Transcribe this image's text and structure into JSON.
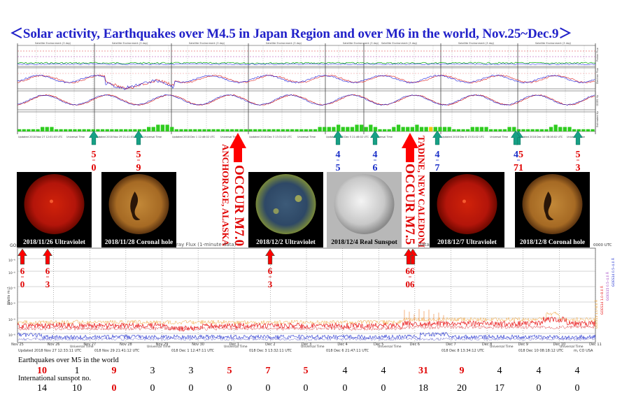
{
  "title": "＜Solar activity, Earthquakes over M4.5 in Japan Region and over M6 in the world, Nov.25~Dec.9＞",
  "colors": {
    "title": "#2121c9",
    "red_number": "#e00000",
    "blue_number": "#1a2fc8",
    "arrow_green": "#16a085",
    "arrow_red": "#ff0000",
    "xray_long": "#e81010",
    "xray_short": "#2030d0",
    "kp_bar": "#2ecc1f"
  },
  "panel_top": {
    "panel_title": "Satellite Environment (3 day)",
    "right_labels": [
      "Proton Flux",
      "Electron Flux",
      "GOES Hp",
      "Estimated Kp"
    ],
    "universal_time_label": "Universal Time",
    "updated_labels": [
      "Updated 2018 Nov 27 12:01:03 UTC",
      "Updated 2018 Nov 29 21:41:03 UTC",
      "Updated 2018 Dec 1 12:46:02 UTC",
      "Updated 2018 Dec 3 13:31:02 UTC",
      "Updated 2018 Dec 5 21:46:02 UTC",
      "Updated 2018 Dec 8 13:31:02 UTC",
      "Updated 2018 Dec 10 08:16:02 UTC"
    ]
  },
  "japan_quakes_blue_up": [
    {
      "top": "5",
      "bottom": "0",
      "color": "red"
    },
    {
      "top": "5",
      "bottom": "9",
      "color": "red"
    },
    {
      "top": "4",
      "bottom": "5",
      "color": "blue"
    },
    {
      "top": "4",
      "bottom": "6",
      "color": "blue"
    },
    {
      "top": "4",
      "bottom": "7",
      "color": "blue"
    },
    {
      "top": "45",
      "bottom": "71",
      "color": "mixed"
    },
    {
      "top": "5",
      "bottom": "3",
      "color": "red"
    }
  ],
  "big_quakes": [
    {
      "text": "OCCUR M7.0",
      "place": "ANCHORAGE, ALASKA"
    },
    {
      "text": "OCCUR M7.5",
      "place": "TADINE, NEW CALEDONIA"
    }
  ],
  "sun_images": [
    {
      "caption": "2018/11/26 Ultraviolet",
      "type": "uv-red"
    },
    {
      "caption": "2018/11/28 Coronal hole",
      "type": "coronal"
    },
    {
      "caption": "2018/12/2 Ultraviolet",
      "type": "uv-blue"
    },
    {
      "caption": "2018/12/4 Real Sunspot",
      "type": "white"
    },
    {
      "caption": "2018/12/7 Ultraviolet",
      "type": "uv-red"
    },
    {
      "caption": "2018/12/8 Coronal hole",
      "type": "coronal"
    }
  ],
  "xray_panel": {
    "title_left": "GOES",
    "title_mid": "X-ray Flux (1-minute data)",
    "title_mid2": "data)",
    "title_right": "0000 UTC",
    "ylabel": "Watts m⁻²",
    "ytick": "10⁻⁶",
    "legend": [
      "GOES15 1.0–8.0 Å",
      "GOES14 1.0–8.0 Å",
      "GOES15 0.5–4.0 Å",
      "GOES14 0.5–4.0 Å"
    ],
    "x_ticks": [
      "Nov 25",
      "Nov 26",
      "Nov 27",
      "Nov 28",
      "Nov 29",
      "Nov 30",
      "Dec 1",
      "Dec 2",
      "Dec 3",
      "Dec 4",
      "Dec 5",
      "Dec 6",
      "Dec 7",
      "Dec 8",
      "Dec 9",
      "Dec 10",
      "Dec 11"
    ],
    "updated_labels": [
      "Updated 2018 Nov 27 12:33:11 UTC",
      "018 Nov 29 21:41:12 UTC",
      "018 Dec 1 12:47:11 UTC",
      "018 Dec 3 13:32:11 UTC",
      "018 Dec 6 21:47:11 UTC",
      "018 Dec 8 13:34:12 UTC",
      "018 Dec 10 08:18:12 UTC"
    ],
    "source": "m, CO USA",
    "universal_time_label": "Universal Time"
  },
  "world_quakes_red_up": [
    {
      "top": "6",
      "bottom": "0"
    },
    {
      "top": "6",
      "bottom": "3"
    },
    {
      "top": "6",
      "bottom": "3"
    },
    {
      "top": "66",
      "bottom": "06"
    }
  ],
  "bottom_table": {
    "earthquake_label": "Earthquakes over M5 in the world",
    "earthquakes": [
      "10",
      "1",
      "9",
      "3",
      "3",
      "5",
      "7",
      "5",
      "4",
      "4",
      "31",
      "9",
      "4",
      "4",
      "4"
    ],
    "earthquake_colors": [
      "red",
      "black",
      "red",
      "black",
      "black",
      "red",
      "red",
      "red",
      "black",
      "black",
      "red",
      "red",
      "black",
      "black",
      "black"
    ],
    "sunspot_label": "International sunspot no.",
    "sunspots": [
      "14",
      "10",
      "0",
      "0",
      "0",
      "0",
      "0",
      "0",
      "0",
      "0",
      "18",
      "20",
      "17",
      "0",
      "0"
    ],
    "sunspot_colors": [
      "black",
      "black",
      "red",
      "black",
      "black",
      "black",
      "black",
      "black",
      "black",
      "black",
      "black",
      "black",
      "black",
      "black",
      "black"
    ]
  },
  "chart_data": {
    "type": "table",
    "title": "＜Solar activity, Earthquakes over M4.5 in Japan Region and over M6 in the world, Nov.25~Dec.9＞",
    "x": [
      "Nov 25",
      "Nov 26",
      "Nov 27",
      "Nov 28",
      "Nov 29",
      "Nov 30",
      "Dec 1",
      "Dec 2",
      "Dec 3",
      "Dec 4",
      "Dec 5",
      "Dec 6",
      "Dec 7",
      "Dec 8",
      "Dec 9"
    ],
    "series": [
      {
        "name": "Earthquakes over M5 in the world",
        "values": [
          10,
          1,
          9,
          3,
          3,
          5,
          7,
          5,
          4,
          4,
          31,
          9,
          4,
          4,
          4
        ]
      },
      {
        "name": "International sunspot no.",
        "values": [
          14,
          10,
          0,
          0,
          0,
          0,
          0,
          0,
          0,
          0,
          18,
          20,
          17,
          0,
          0
        ]
      }
    ],
    "estimated_kp_bar_heights": [
      1,
      1,
      1,
      1,
      1,
      2,
      2,
      2,
      1,
      1,
      1,
      1,
      1,
      1,
      1,
      1,
      1,
      1,
      1,
      1,
      1,
      1,
      1,
      1,
      1,
      1,
      1,
      1,
      2,
      2,
      3,
      3,
      3,
      2,
      1,
      1,
      1,
      1,
      1,
      1,
      1,
      1,
      1,
      1,
      1,
      1,
      1,
      1,
      1,
      1,
      1,
      1,
      1,
      1,
      1,
      1,
      1,
      1,
      1,
      1,
      1,
      1,
      1,
      1,
      1,
      2,
      2,
      2,
      2,
      3,
      2,
      2,
      2,
      3,
      3,
      2,
      3,
      2,
      1,
      1,
      1,
      2,
      3,
      2,
      2,
      2,
      3,
      2,
      2,
      2,
      2,
      2,
      2,
      2,
      1,
      1,
      1,
      1,
      2,
      2,
      2,
      2,
      1,
      1,
      1,
      1,
      2,
      2,
      1,
      1,
      1,
      1,
      1,
      1,
      1,
      2,
      3,
      2,
      2,
      2,
      1,
      1,
      1,
      1,
      1
    ]
  }
}
